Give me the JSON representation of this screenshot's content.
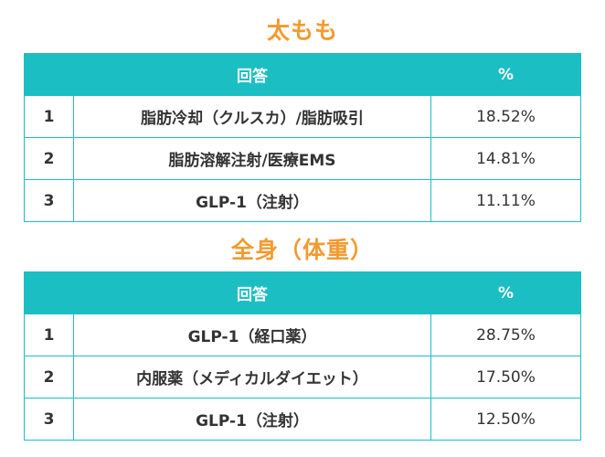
{
  "sections": [
    {
      "title": "太もも",
      "header": {
        "rank": "",
        "answer": "回答",
        "pct": "%"
      },
      "rows": [
        {
          "rank": "1",
          "answer": "脂肪冷却（クルスカ）/脂肪吸引",
          "pct": "18.52%"
        },
        {
          "rank": "2",
          "answer": "脂肪溶解注射/医療EMS",
          "pct": "14.81%"
        },
        {
          "rank": "3",
          "answer": "GLP-1（注射）",
          "pct": "11.11%"
        }
      ]
    },
    {
      "title": "全身（体重）",
      "header": {
        "rank": "",
        "answer": "回答",
        "pct": "%"
      },
      "rows": [
        {
          "rank": "1",
          "answer": "GLP-1（経口薬）",
          "pct": "28.75%"
        },
        {
          "rank": "2",
          "answer": "内服薬（メディカルダイエット）",
          "pct": "17.50%"
        },
        {
          "rank": "3",
          "answer": "GLP-1（注射）",
          "pct": "12.50%"
        }
      ]
    }
  ],
  "colors": {
    "accent": "#1bbfc3",
    "title": "#f39a30"
  }
}
